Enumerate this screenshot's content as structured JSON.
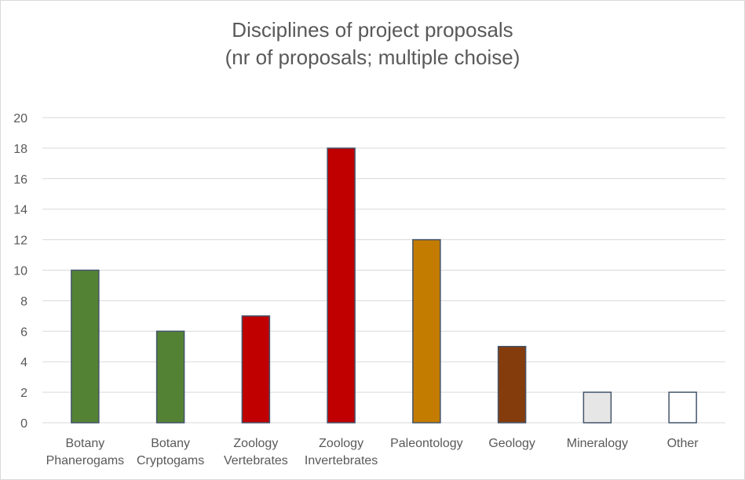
{
  "chart_data": {
    "type": "bar",
    "title": "Disciplines of project proposals",
    "subtitle": "(nr of proposals; multiple choise)",
    "xlabel": "",
    "ylabel": "",
    "ylim": [
      0,
      20
    ],
    "yticks": [
      0,
      2,
      4,
      6,
      8,
      10,
      12,
      14,
      16,
      18,
      20
    ],
    "grid": true,
    "legend": "none",
    "categories": [
      [
        "Botany",
        "Phanerogams"
      ],
      [
        "Botany",
        "Cryptogams"
      ],
      [
        "Zoology",
        "Vertebrates"
      ],
      [
        "Zoology",
        "Invertebrates"
      ],
      [
        "Paleontology"
      ],
      [
        "Geology"
      ],
      [
        "Mineralogy"
      ],
      [
        "Other"
      ]
    ],
    "values": [
      10,
      6,
      7,
      18,
      12,
      5,
      2,
      2
    ],
    "colors": [
      "#548235",
      "#548235",
      "#c00000",
      "#c00000",
      "#c47c00",
      "#843c0c",
      "#e7e6e6",
      "#ffffff"
    ],
    "bar_outline": "#44546a",
    "grid_color": "#d9d9d9"
  }
}
